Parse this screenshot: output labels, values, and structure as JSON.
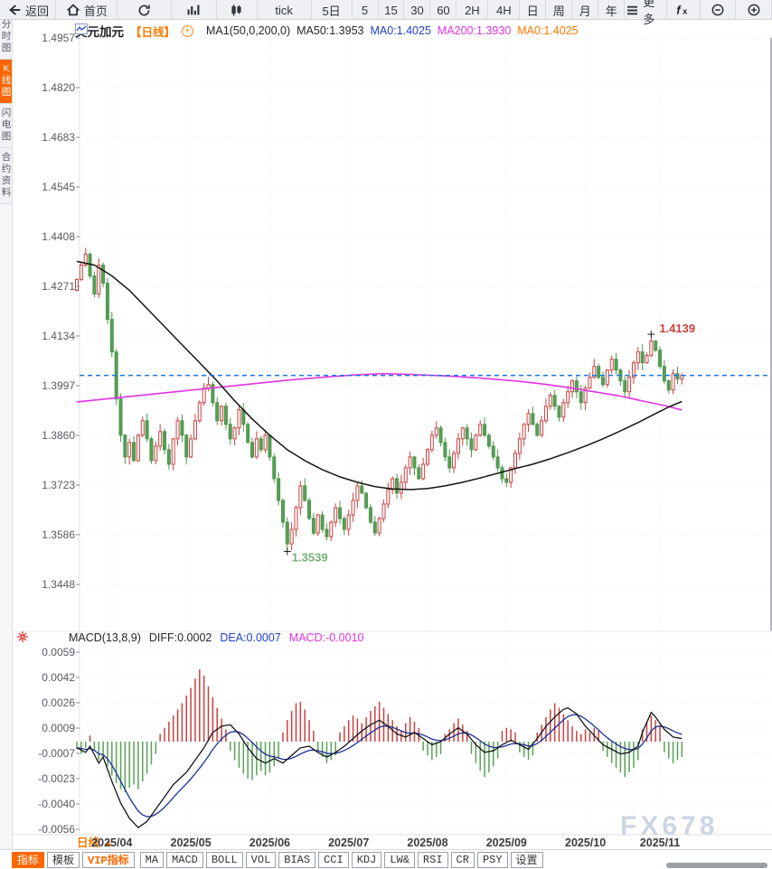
{
  "app": {
    "watermark": "FX678",
    "accent_orange": "#ff6600"
  },
  "toolbar": {
    "items": [
      {
        "name": "back",
        "icon": "back-arrow",
        "label": "返回"
      },
      {
        "name": "home",
        "icon": "home",
        "label": "首页"
      },
      {
        "name": "refresh",
        "icon": "refresh",
        "label": ""
      },
      {
        "name": "bar-chart-view",
        "icon": "bar-chart",
        "label": ""
      },
      {
        "name": "candle-view",
        "icon": "candlestick",
        "label": ""
      },
      {
        "name": "period-tick",
        "icon": "",
        "label": "tick"
      },
      {
        "name": "period-5d",
        "icon": "",
        "label": "5日"
      },
      {
        "name": "period-5",
        "icon": "",
        "label": "5"
      },
      {
        "name": "period-15",
        "icon": "",
        "label": "15"
      },
      {
        "name": "period-30",
        "icon": "",
        "label": "30"
      },
      {
        "name": "period-60",
        "icon": "",
        "label": "60"
      },
      {
        "name": "period-2h",
        "icon": "",
        "label": "2H"
      },
      {
        "name": "period-4h",
        "icon": "",
        "label": "4H"
      },
      {
        "name": "period-day",
        "icon": "",
        "label": "日"
      },
      {
        "name": "period-week",
        "icon": "",
        "label": "周"
      },
      {
        "name": "period-month",
        "icon": "",
        "label": "月"
      },
      {
        "name": "period-year",
        "icon": "",
        "label": "年"
      },
      {
        "name": "more-menu",
        "icon": "menu",
        "label": "更多"
      },
      {
        "name": "fx-indicator",
        "icon": "fx",
        "label": ""
      },
      {
        "name": "zoom-out",
        "icon": "zoom-out",
        "label": ""
      },
      {
        "name": "zoom-in",
        "icon": "zoom-in",
        "label": ""
      }
    ]
  },
  "sidebar": {
    "items": [
      {
        "name": "time-chart",
        "label": "分时图",
        "active": false
      },
      {
        "name": "kline-chart",
        "label": "K线图",
        "active": true
      },
      {
        "name": "lightning-chart",
        "label": "闪电图",
        "active": false
      },
      {
        "name": "contract-info",
        "label": "合约资料",
        "active": false
      }
    ]
  },
  "header": {
    "symbol": "美元加元",
    "period_tag": "【日线】",
    "ma_group": "MA1(50,0,200,0)",
    "ma50": "MA50:1.3953",
    "ma0_blue": "MA0:1.4025",
    "ma200": "MA200:1.3930",
    "ma0_orange": "MA0:1.4025"
  },
  "macd_header": {
    "title": "MACD(13,8,9)",
    "diff": "DIFF:0.0002",
    "dea": "DEA:0.0007",
    "macd": "MACD:-0.0010"
  },
  "bottom": {
    "period_label": "日线 ▲",
    "tabs": [
      {
        "name": "indicators",
        "label": "指标",
        "style": "active"
      },
      {
        "name": "templates",
        "label": "模板",
        "style": "plain"
      },
      {
        "name": "vip-indicators",
        "label": "VIP指标",
        "style": "vip"
      },
      {
        "name": "ma",
        "label": "MA",
        "style": ""
      },
      {
        "name": "macd",
        "label": "MACD",
        "style": ""
      },
      {
        "name": "boll",
        "label": "BOLL",
        "style": ""
      },
      {
        "name": "vol",
        "label": "VOL",
        "style": ""
      },
      {
        "name": "bias",
        "label": "BIAS",
        "style": ""
      },
      {
        "name": "cci",
        "label": "CCI",
        "style": ""
      },
      {
        "name": "kdj",
        "label": "KDJ",
        "style": ""
      },
      {
        "name": "lwr",
        "label": "LW&",
        "style": ""
      },
      {
        "name": "rsi",
        "label": "RSI",
        "style": ""
      },
      {
        "name": "cr",
        "label": "CR",
        "style": ""
      },
      {
        "name": "psy",
        "label": "PSY",
        "style": ""
      },
      {
        "name": "settings",
        "label": "设置",
        "style": "plain"
      }
    ]
  },
  "chart_data": {
    "type": "candlestick+macd",
    "title": "美元加元 日线",
    "x_labels": [
      "2025/04",
      "2025/05",
      "2025/06",
      "2025/07",
      "2025/08",
      "2025/09",
      "2025/10",
      "2025/11"
    ],
    "month_start_indices": [
      8,
      26,
      44,
      62,
      80,
      98,
      116,
      133
    ],
    "y_ticks_price": [
      1.4957,
      1.482,
      1.4683,
      1.4545,
      1.4408,
      1.4271,
      1.4134,
      1.3997,
      1.386,
      1.3723,
      1.3586,
      1.3448
    ],
    "y_ticks_macd": [
      0.0059,
      0.0042,
      0.0026,
      0.0009,
      -0.0007,
      -0.0023,
      -0.004,
      -0.0056
    ],
    "current_price_line": 1.4025,
    "annotations": [
      {
        "name": "high",
        "text": "1.4139",
        "index": 131,
        "price": 1.4139,
        "color": "#c9413f"
      },
      {
        "name": "low",
        "text": "1.3539",
        "index": 48,
        "price": 1.3539,
        "color": "#76b376"
      }
    ],
    "open_first": 1.426,
    "closes": [
      1.429,
      1.433,
      1.436,
      1.43,
      1.425,
      1.433,
      1.428,
      1.418,
      1.409,
      1.396,
      1.386,
      1.38,
      1.384,
      1.379,
      1.386,
      1.39,
      1.385,
      1.379,
      1.383,
      1.387,
      1.382,
      1.378,
      1.385,
      1.39,
      1.386,
      1.38,
      1.385,
      1.39,
      1.395,
      1.399,
      1.4,
      1.395,
      1.39,
      1.394,
      1.389,
      1.385,
      1.388,
      1.393,
      1.389,
      1.384,
      1.38,
      1.385,
      1.382,
      1.386,
      1.38,
      1.374,
      1.368,
      1.362,
      1.356,
      1.36,
      1.366,
      1.372,
      1.368,
      1.363,
      1.359,
      1.364,
      1.36,
      1.358,
      1.362,
      1.366,
      1.363,
      1.36,
      1.364,
      1.368,
      1.372,
      1.37,
      1.366,
      1.362,
      1.359,
      1.363,
      1.367,
      1.371,
      1.374,
      1.37,
      1.373,
      1.377,
      1.38,
      1.377,
      1.374,
      1.378,
      1.382,
      1.386,
      1.388,
      1.384,
      1.38,
      1.377,
      1.381,
      1.385,
      1.388,
      1.385,
      1.382,
      1.386,
      1.389,
      1.386,
      1.383,
      1.38,
      1.377,
      1.374,
      1.373,
      1.377,
      1.381,
      1.385,
      1.389,
      1.392,
      1.389,
      1.386,
      1.39,
      1.394,
      1.397,
      1.394,
      1.391,
      1.395,
      1.398,
      1.401,
      1.398,
      1.395,
      1.399,
      1.402,
      1.405,
      1.402,
      1.4,
      1.404,
      1.407,
      1.404,
      1.401,
      1.398,
      1.402,
      1.406,
      1.409,
      1.406,
      1.408,
      1.412,
      1.4095,
      1.405,
      1.401,
      1.3985,
      1.403,
      1.4015,
      1.4025
    ],
    "high_override": {
      "131": 1.4139
    },
    "low_override": {
      "48": 1.3539
    },
    "ma50_points": [
      [
        0,
        1.434
      ],
      [
        4,
        1.433
      ],
      [
        8,
        1.43
      ],
      [
        12,
        1.426
      ],
      [
        16,
        1.421
      ],
      [
        20,
        1.416
      ],
      [
        24,
        1.411
      ],
      [
        28,
        1.406
      ],
      [
        32,
        1.401
      ],
      [
        36,
        1.3955
      ],
      [
        40,
        1.3905
      ],
      [
        44,
        1.386
      ],
      [
        48,
        1.382
      ],
      [
        52,
        1.379
      ],
      [
        56,
        1.3765
      ],
      [
        60,
        1.3745
      ],
      [
        64,
        1.373
      ],
      [
        68,
        1.3718
      ],
      [
        72,
        1.3712
      ],
      [
        76,
        1.371
      ],
      [
        80,
        1.3713
      ],
      [
        84,
        1.372
      ],
      [
        88,
        1.373
      ],
      [
        92,
        1.3742
      ],
      [
        96,
        1.3755
      ],
      [
        100,
        1.3768
      ],
      [
        104,
        1.378
      ],
      [
        108,
        1.3795
      ],
      [
        112,
        1.3812
      ],
      [
        116,
        1.383
      ],
      [
        120,
        1.385
      ],
      [
        124,
        1.3872
      ],
      [
        128,
        1.3895
      ],
      [
        132,
        1.392
      ],
      [
        135,
        1.3938
      ],
      [
        138,
        1.3953
      ]
    ],
    "ma200_points": [
      [
        0,
        1.3952
      ],
      [
        8,
        1.3962
      ],
      [
        16,
        1.3972
      ],
      [
        24,
        1.3982
      ],
      [
        32,
        1.3992
      ],
      [
        40,
        1.4002
      ],
      [
        48,
        1.4012
      ],
      [
        56,
        1.402
      ],
      [
        64,
        1.4027
      ],
      [
        70,
        1.403
      ],
      [
        76,
        1.4028
      ],
      [
        84,
        1.4024
      ],
      [
        92,
        1.4018
      ],
      [
        100,
        1.401
      ],
      [
        106,
        1.4002
      ],
      [
        112,
        1.3992
      ],
      [
        118,
        1.398
      ],
      [
        124,
        1.3968
      ],
      [
        130,
        1.3952
      ],
      [
        134,
        1.3942
      ],
      [
        138,
        1.393
      ]
    ],
    "macd_unit": 0.0001,
    "macd_hist_1e4": [
      -5,
      -8,
      -4,
      4,
      -6,
      -12,
      -10,
      -16,
      -22,
      -27,
      -31,
      -33,
      -30,
      -28,
      -31,
      -26,
      -21,
      -15,
      -8,
      5,
      9,
      13,
      17,
      21,
      25,
      30,
      35,
      41,
      47,
      43,
      36,
      29,
      22,
      15,
      8,
      -6,
      -12,
      -17,
      -21,
      -24,
      -25,
      -22,
      -19,
      -22,
      -20,
      -16,
      -11,
      6,
      14,
      20,
      25,
      26,
      21,
      14,
      7,
      -6,
      -10,
      -14,
      -12,
      -9,
      6,
      10,
      14,
      17,
      15,
      12,
      16,
      20,
      23,
      26,
      22,
      18,
      14,
      10,
      7,
      12,
      16,
      13,
      9,
      -6,
      -9,
      -12,
      -10,
      -8,
      5,
      8,
      12,
      15,
      11,
      7,
      -8,
      -14,
      -19,
      -23,
      -20,
      -16,
      -11,
      7,
      9,
      8,
      6,
      -7,
      -10,
      -12,
      -9,
      6,
      11,
      16,
      21,
      25,
      22,
      18,
      14,
      10,
      7,
      5,
      8,
      6,
      9,
      7,
      -6,
      -10,
      -14,
      -17,
      -20,
      -23,
      -20,
      -17,
      -12,
      8,
      13,
      17,
      14,
      10,
      -7,
      -11,
      -14,
      -12,
      -10
    ],
    "diff_points_1e4": [
      [
        0,
        -4
      ],
      [
        2,
        -7
      ],
      [
        3,
        -3
      ],
      [
        5,
        -14
      ],
      [
        6,
        -10
      ],
      [
        8,
        -26
      ],
      [
        10,
        -40
      ],
      [
        12,
        -50
      ],
      [
        14,
        -56
      ],
      [
        16,
        -52
      ],
      [
        18,
        -44
      ],
      [
        20,
        -36
      ],
      [
        22,
        -28
      ],
      [
        25,
        -20
      ],
      [
        27,
        -12
      ],
      [
        29,
        -4
      ],
      [
        31,
        6
      ],
      [
        33,
        10
      ],
      [
        35,
        11
      ],
      [
        37,
        5
      ],
      [
        39,
        -4
      ],
      [
        41,
        -11
      ],
      [
        43,
        -14
      ],
      [
        45,
        -11
      ],
      [
        47,
        -14
      ],
      [
        49,
        -9
      ],
      [
        51,
        -4
      ],
      [
        53,
        -3
      ],
      [
        55,
        -7
      ],
      [
        57,
        -10
      ],
      [
        59,
        -7
      ],
      [
        61,
        -3
      ],
      [
        63,
        2
      ],
      [
        65,
        7
      ],
      [
        67,
        11
      ],
      [
        69,
        14
      ],
      [
        71,
        10
      ],
      [
        73,
        5
      ],
      [
        75,
        3
      ],
      [
        77,
        6
      ],
      [
        79,
        2
      ],
      [
        81,
        -2
      ],
      [
        83,
        0
      ],
      [
        85,
        5
      ],
      [
        87,
        9
      ],
      [
        89,
        5
      ],
      [
        91,
        -2
      ],
      [
        93,
        -7
      ],
      [
        95,
        -6
      ],
      [
        97,
        -2
      ],
      [
        99,
        1
      ],
      [
        101,
        -2
      ],
      [
        103,
        -5
      ],
      [
        105,
        2
      ],
      [
        107,
        10
      ],
      [
        109,
        16
      ],
      [
        111,
        21
      ],
      [
        112,
        22
      ],
      [
        114,
        18
      ],
      [
        116,
        10
      ],
      [
        118,
        4
      ],
      [
        120,
        -2
      ],
      [
        122,
        -5
      ],
      [
        124,
        -8
      ],
      [
        126,
        -7
      ],
      [
        128,
        -3
      ],
      [
        129,
        6
      ],
      [
        131,
        19
      ],
      [
        132,
        16
      ],
      [
        134,
        8
      ],
      [
        136,
        3
      ],
      [
        138,
        2
      ]
    ],
    "colors": {
      "up": "#c9413f",
      "down_fill": "#55a055",
      "down_stroke": "#4d964d",
      "ma50": "#151515",
      "ma200": "#e332e3",
      "price_line": "#1878e8",
      "diff": "#151515",
      "dea": "#1c2f96",
      "hist_up": "#c9413f",
      "hist_down": "#57a257",
      "grid": "#ececec",
      "axis_text": "#555a62",
      "x_text": "#3c3c3c"
    },
    "legend_position": "top-left-inline",
    "grid": "dotted"
  }
}
